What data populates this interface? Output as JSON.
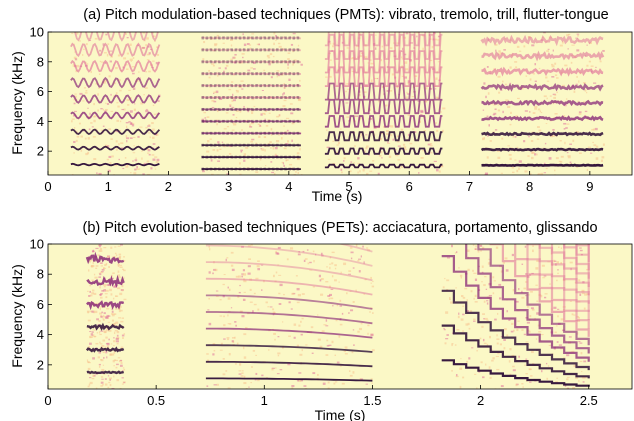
{
  "colors": {
    "background": "#fbf8c6",
    "low": "#f7c38f",
    "mid": "#e0729a",
    "high": "#8a2a78",
    "peak": "#2a0b36"
  },
  "chart_data": [
    {
      "type": "heatmap",
      "title": "(a) Pitch modulation-based techniques (PMTs): vibrato, tremolo, trill, flutter-tongue",
      "xlabel": "Time (s)",
      "ylabel": "Frequency (kHz)",
      "xlim": [
        0,
        9.7
      ],
      "ylim": [
        0.4,
        10
      ],
      "xticks": [
        0,
        1,
        2,
        3,
        4,
        5,
        6,
        7,
        8,
        9
      ],
      "yticks": [
        2,
        4,
        6,
        8,
        10
      ],
      "colormap": "magma (reversed), light yellow = low energy",
      "series": [
        {
          "name": "vibrato",
          "start": 0.38,
          "end": 1.85,
          "f0_khz": 1.1,
          "harmonics": 9,
          "modulation": "sinusoidal"
        },
        {
          "name": "tremolo",
          "start": 2.55,
          "end": 4.2,
          "f0_khz": 0.8,
          "harmonics": 11,
          "modulation": "amplitude"
        },
        {
          "name": "trill",
          "start": 4.6,
          "end": 6.55,
          "f0_khz": 1.0,
          "harmonics": 9,
          "modulation": "square alternation"
        },
        {
          "name": "flutter-tongue",
          "start": 7.2,
          "end": 9.22,
          "f0_khz": 1.05,
          "harmonics": 9,
          "modulation": "noisy"
        }
      ]
    },
    {
      "type": "heatmap",
      "title": "(b) Pitch evolution-based techniques (PETs): acciacatura, portamento, glissando",
      "xlabel": "Time (s)",
      "ylabel": "Frequency (kHz)",
      "xlim": [
        0,
        2.7
      ],
      "ylim": [
        0.4,
        10
      ],
      "xticks": [
        0,
        0.5,
        1,
        1.5,
        2,
        2.5
      ],
      "yticks": [
        2,
        4,
        6,
        8,
        10
      ],
      "colormap": "magma (reversed), light yellow = low energy",
      "series": [
        {
          "name": "acciacatura",
          "start": 0.18,
          "end": 0.35,
          "f0_khz": 1.5
        },
        {
          "name": "portamento",
          "start": 0.73,
          "end": 1.5,
          "f0_start_khz": 1.1,
          "f0_end_khz": 0.95
        },
        {
          "name": "glissando",
          "start": 1.82,
          "end": 2.5,
          "f0_start_khz": 2.3,
          "f0_end_khz": 0.55
        }
      ]
    }
  ]
}
